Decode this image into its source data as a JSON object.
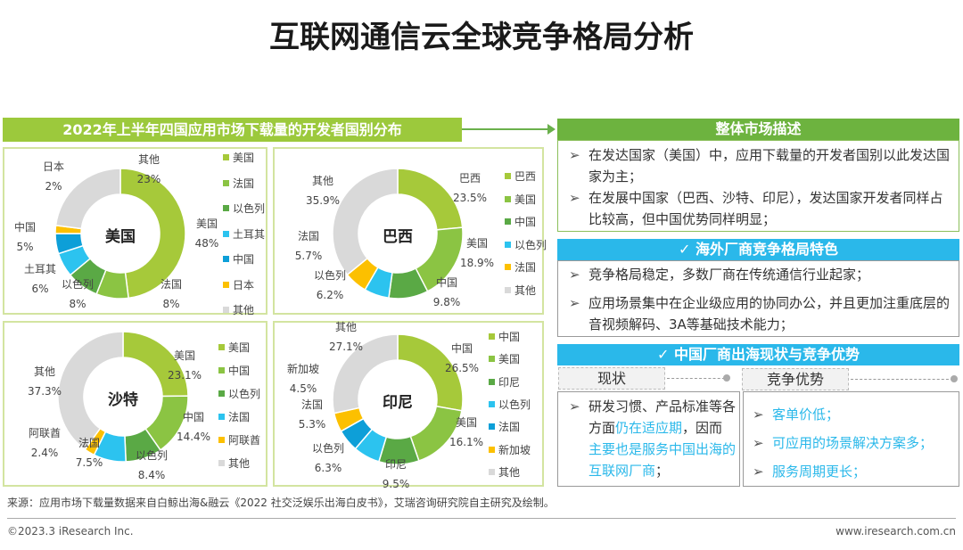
{
  "page_title": "互联网通信云全球竞争格局分析",
  "left_header": "2022年上半年四国应用市场下载量的开发者国别分布",
  "colors": [
    "#a6c93a",
    "#8bc443",
    "#5aa945",
    "#2cc3ef",
    "#0d9fd8",
    "#fcc000",
    "#d9d9d9"
  ],
  "chart_data": [
    {
      "type": "pie",
      "variant": "donut",
      "center_label": "美国",
      "categories": [
        "美国",
        "法国",
        "以色列",
        "土耳其",
        "中国",
        "日本",
        "其他"
      ],
      "values": [
        48,
        8,
        8,
        6,
        5,
        2,
        23
      ],
      "data_labels": [
        "48%",
        "8%",
        "8%",
        "6%",
        "5%",
        "2%",
        "23%"
      ],
      "legend": "right"
    },
    {
      "type": "pie",
      "variant": "donut",
      "center_label": "巴西",
      "categories": [
        "巴西",
        "美国",
        "中国",
        "以色列",
        "法国",
        "其他"
      ],
      "values": [
        23.5,
        18.9,
        9.8,
        6.2,
        5.7,
        35.9
      ],
      "data_labels": [
        "23.5%",
        "18.9%",
        "9.8%",
        "6.2%",
        "5.7%",
        "35.9%"
      ],
      "legend": "right"
    },
    {
      "type": "pie",
      "variant": "donut",
      "center_label": "沙特",
      "categories": [
        "美国",
        "中国",
        "以色列",
        "法国",
        "阿联酋",
        "其他"
      ],
      "values": [
        23.1,
        14.4,
        8.4,
        7.5,
        2.4,
        37.3
      ],
      "data_labels": [
        "23.1%",
        "14.4%",
        "8.4%",
        "7.5%",
        "2.4%",
        "37.3%"
      ],
      "legend": "right"
    },
    {
      "type": "pie",
      "variant": "donut",
      "center_label": "印尼",
      "categories": [
        "中国",
        "美国",
        "印尼",
        "以色列",
        "法国",
        "新加坡",
        "其他"
      ],
      "values": [
        26.5,
        16.1,
        9.5,
        6.3,
        5.3,
        4.5,
        27.1
      ],
      "data_labels": [
        "26.5%",
        "16.1%",
        "9.5%",
        "6.3%",
        "5.3%",
        "4.5%",
        "27.1%"
      ],
      "legend": "right"
    }
  ],
  "overall": {
    "header": "整体市场描述",
    "bullets": [
      "在发达国家（美国）中，应用下载量的开发者国别以此发达国家为主；",
      "在发展中国家（巴西、沙特、印尼），发达国家开发者同样占比较高，但中国优势同样明显；"
    ]
  },
  "overseas": {
    "header": "✓ 海外厂商竞争格局特色",
    "bullets": [
      "竞争格局稳定，多数厂商在传统通信行业起家；",
      "应用场景集中在企业级应用的协同办公，并且更加注重底层的音视频解码、3A等基础技术能力；"
    ]
  },
  "china": {
    "header": "✓ 中国厂商出海现状与竞争优势",
    "status_tag": "现状",
    "advantage_tag": "竞争优势",
    "status_text": [
      "研发习惯、产品标准等各方面",
      "仍在适应期",
      "，因而",
      "主要也是服务中国出海的互联网厂商",
      "；"
    ],
    "advantages": [
      "客单价低；",
      "可应用的场景解决方案多；",
      "服务周期更长；"
    ]
  },
  "bullet_icon": "➢",
  "source": "来源：应用市场下载量数据来自白鲸出海&融云《2022 社交泛娱乐出海白皮书》，艾瑞咨询研究院自主研究及绘制。",
  "copyright": "©2023.3 iResearch Inc.",
  "website": "www.iresearch.com.cn"
}
